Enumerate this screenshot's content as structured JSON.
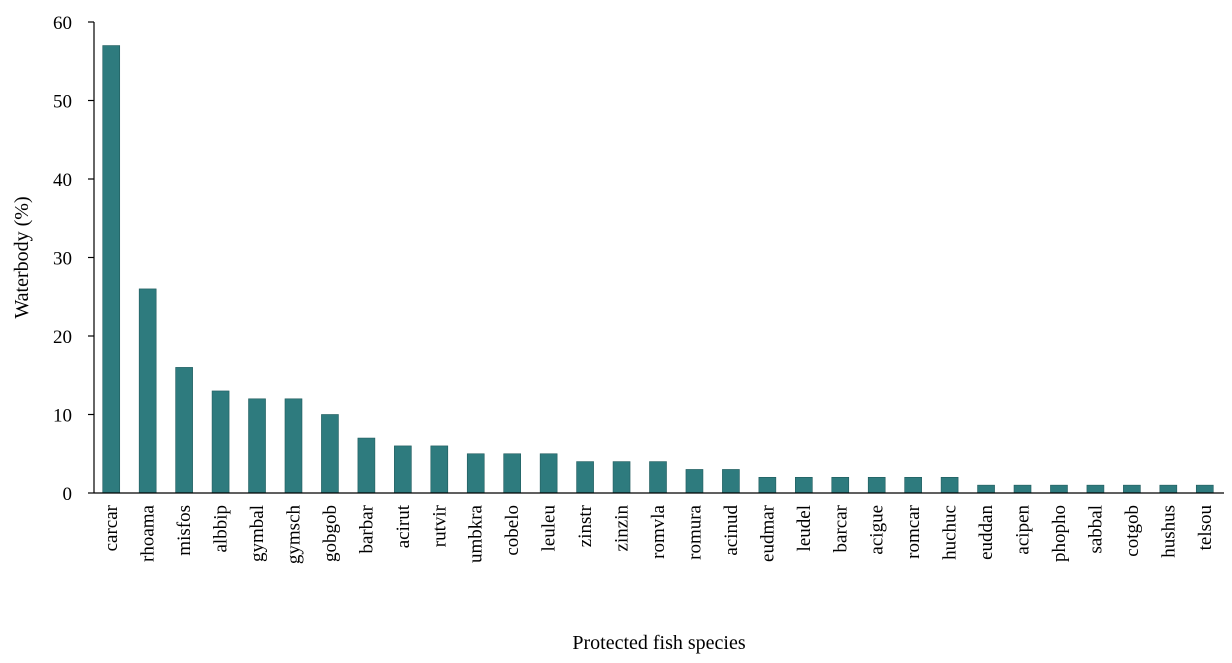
{
  "chart_data": {
    "type": "bar",
    "title": "",
    "xlabel": "Protected fish species",
    "ylabel": "Waterbody (%)",
    "ylim": [
      0,
      60
    ],
    "yticks": [
      0,
      10,
      20,
      30,
      40,
      50,
      60
    ],
    "grid": false,
    "legend": "none",
    "bar_color": "#2e7b7e",
    "categories": [
      "carcar",
      "rhoama",
      "misfos",
      "albbip",
      "gymbal",
      "gymsch",
      "gobgob",
      "barbar",
      "acirut",
      "rutvir",
      "umbkra",
      "cobelo",
      "leuleu",
      "zinstr",
      "zinzin",
      "romvla",
      "romura",
      "acinud",
      "eudmar",
      "leudel",
      "barcar",
      "acigue",
      "romcar",
      "huchuc",
      "euddan",
      "acipen",
      "phopho",
      "sabbal",
      "cotgob",
      "hushus",
      "telsou"
    ],
    "values": [
      57,
      26,
      16,
      13,
      12,
      12,
      10,
      7,
      6,
      6,
      5,
      5,
      5,
      4,
      4,
      4,
      3,
      3,
      2,
      2,
      2,
      2,
      2,
      2,
      1,
      1,
      1,
      1,
      1,
      1,
      1
    ]
  }
}
